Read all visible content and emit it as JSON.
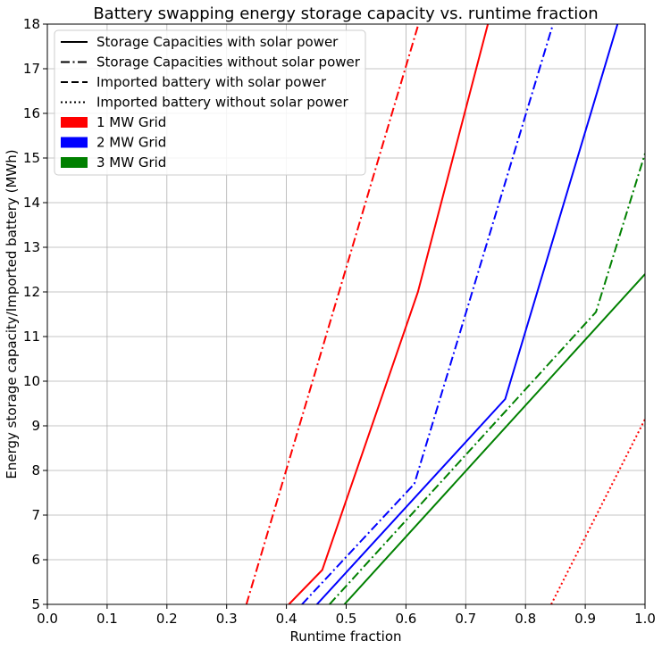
{
  "chart_data": {
    "type": "line",
    "title": "Battery swapping energy storage capacity vs. runtime fraction",
    "xlabel": "Runtime fraction",
    "ylabel": "Energy storage capacity/Imported battery (MWh)",
    "xlim": [
      0.0,
      1.0
    ],
    "ylim": [
      5,
      18
    ],
    "xticks": [
      "0.0",
      "0.1",
      "0.2",
      "0.3",
      "0.4",
      "0.5",
      "0.6",
      "0.7",
      "0.8",
      "0.9",
      "1.0"
    ],
    "yticks": [
      "5",
      "6",
      "7",
      "8",
      "9",
      "10",
      "11",
      "12",
      "13",
      "14",
      "15",
      "16",
      "17",
      "18"
    ],
    "grid": true,
    "legend_position": "top-left",
    "legend": [
      {
        "label": "Storage Capacities with solar power",
        "kind": "line",
        "dash": "solid"
      },
      {
        "label": "Storage Capacities without solar power",
        "kind": "line",
        "dash": "dashdot"
      },
      {
        "label": "Imported battery with solar power",
        "kind": "line",
        "dash": "dashed"
      },
      {
        "label": "Imported battery without solar power",
        "kind": "line",
        "dash": "dotted"
      },
      {
        "label": "1 MW Grid",
        "kind": "patch",
        "color": "#ff0000"
      },
      {
        "label": "2 MW Grid",
        "kind": "patch",
        "color": "#0000ff"
      },
      {
        "label": "3 MW Grid",
        "kind": "patch",
        "color": "#008000"
      }
    ],
    "series": [
      {
        "grid": "1 MW Grid",
        "type": "Storage Capacities with solar power",
        "color": "#ff0000",
        "dash": "solid",
        "x": [
          0.404,
          0.46,
          0.62,
          0.737
        ],
        "y": [
          5.0,
          5.77,
          12.0,
          18.0
        ]
      },
      {
        "grid": "1 MW Grid",
        "type": "Storage Capacities without solar power",
        "color": "#ff0000",
        "dash": "dashdot",
        "x": [
          0.333,
          0.621
        ],
        "y": [
          5.0,
          18.0
        ]
      },
      {
        "grid": "1 MW Grid",
        "type": "Imported battery without solar power",
        "color": "#ff0000",
        "dash": "dotted",
        "x": [
          0.843,
          1.0
        ],
        "y": [
          5.0,
          9.15
        ]
      },
      {
        "grid": "2 MW Grid",
        "type": "Storage Capacities with solar power",
        "color": "#0000ff",
        "dash": "solid",
        "x": [
          0.451,
          0.766,
          0.954
        ],
        "y": [
          5.0,
          9.6,
          18.0
        ]
      },
      {
        "grid": "2 MW Grid",
        "type": "Storage Capacities without solar power",
        "color": "#0000ff",
        "dash": "dashdot",
        "x": [
          0.426,
          0.614,
          0.846
        ],
        "y": [
          5.0,
          7.7,
          18.0
        ]
      },
      {
        "grid": "3 MW Grid",
        "type": "Storage Capacities with solar power",
        "color": "#008000",
        "dash": "solid",
        "x": [
          0.497,
          1.0
        ],
        "y": [
          5.0,
          12.4
        ]
      },
      {
        "grid": "3 MW Grid",
        "type": "Storage Capacities without solar power",
        "color": "#008000",
        "dash": "dashdot",
        "x": [
          0.472,
          0.918,
          1.0
        ],
        "y": [
          5.0,
          11.55,
          15.1
        ]
      }
    ]
  }
}
